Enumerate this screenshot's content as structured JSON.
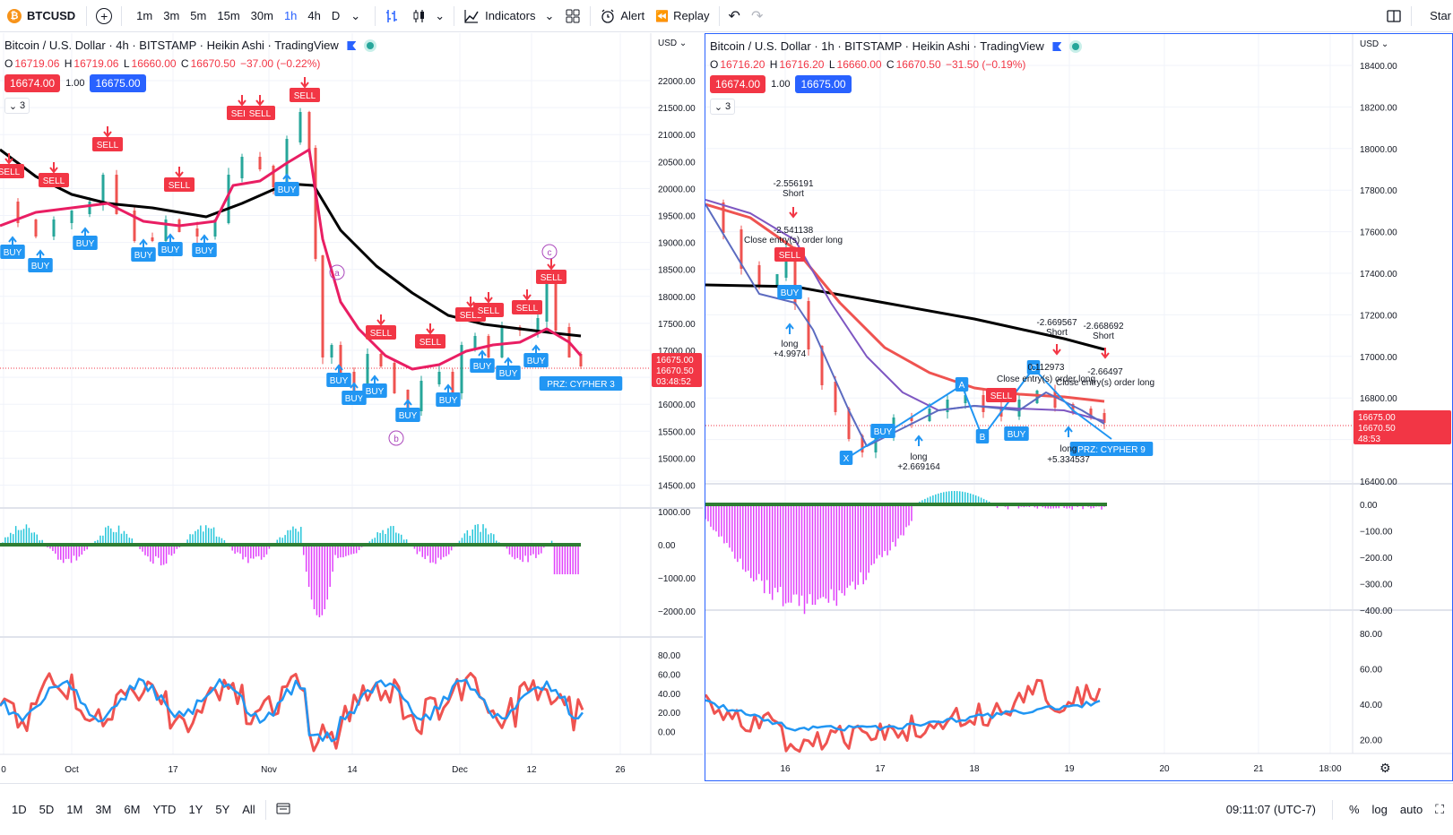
{
  "toolbar": {
    "symbol": "BTCUSD",
    "timeframes": [
      "1m",
      "3m",
      "5m",
      "15m",
      "30m",
      "1h",
      "4h",
      "D"
    ],
    "active_timeframe": "1h",
    "indicators_label": "Indicators",
    "alert_label": "Alert",
    "replay_label": "Replay",
    "start_label": "Star"
  },
  "colors": {
    "accent": "#2962ff",
    "sell": "#f23645",
    "buy": "#2196f3",
    "ma_black": "#000000",
    "ma_red": "#e91e63",
    "osc_pos": "#26c6da",
    "osc_neg": "#e040fb"
  },
  "left_chart": {
    "legend": "Bitcoin / U.S. Dollar · 4h · BITSTAMP · Heikin Ashi · TradingView",
    "ohlc": {
      "o": "16719.06",
      "h": "16719.06",
      "l": "16660.00",
      "c": "16670.50",
      "change": "−37.00 (−0.22%)"
    },
    "bid": "16674.00",
    "qty": "1.00",
    "ask": "16675.00",
    "collapse_count": "3",
    "currency": "USD",
    "price_ticks": [
      "22000.00",
      "21500.00",
      "21000.00",
      "20500.00",
      "20000.00",
      "19500.00",
      "19000.00",
      "18500.00",
      "18000.00",
      "17500.00",
      "17000.00",
      "16500.00",
      "16000.00",
      "15500.00",
      "15000.00",
      "14500.00"
    ],
    "price_labels": [
      "16675.00",
      "16670.50",
      "03:48:52"
    ],
    "osc_ticks": [
      "1000.00",
      "0.00",
      "−1000.00",
      "−2000.00"
    ],
    "rsi_ticks": [
      "80.00",
      "60.00",
      "40.00",
      "20.00",
      "0.00"
    ],
    "time_ticks": [
      "0",
      "Oct",
      "17",
      "Nov",
      "14",
      "Dec",
      "12",
      "26"
    ],
    "prz_label": "PRZ: CYPHER 3",
    "wave_labels": [
      "a",
      "b",
      "c"
    ],
    "sell_label": "SELL",
    "buy_label": "BUY"
  },
  "right_chart": {
    "legend": "Bitcoin / U.S. Dollar · 1h · BITSTAMP · Heikin Ashi · TradingView",
    "ohlc": {
      "o": "16716.20",
      "h": "16716.20",
      "l": "16660.00",
      "c": "16670.50",
      "change": "−31.50 (−0.19%)"
    },
    "bid": "16674.00",
    "qty": "1.00",
    "ask": "16675.00",
    "collapse_count": "3",
    "currency": "USD",
    "price_ticks": [
      "18400.00",
      "18200.00",
      "18000.00",
      "17800.00",
      "17600.00",
      "17400.00",
      "17200.00",
      "17000.00",
      "16800.00",
      "16600.00",
      "16400.00"
    ],
    "price_labels": [
      "16675.00",
      "16670.50",
      "48:53"
    ],
    "osc_ticks": [
      "0.00",
      "−100.00",
      "−200.00",
      "−300.00",
      "−400.00"
    ],
    "rsi_ticks": [
      "80.00",
      "60.00",
      "40.00",
      "20.00"
    ],
    "time_ticks": [
      "16",
      "17",
      "18",
      "19",
      "20",
      "21",
      "18:00"
    ],
    "prz_label": "PRZ: CYPHER 9",
    "xabc_labels": [
      "X",
      "A",
      "B",
      "C"
    ],
    "annotations": {
      "short1_val": "-2.556191",
      "short1": "Short",
      "close1_val": "-2.541138",
      "close1": "Close entry(s) order long",
      "long1": "long",
      "long1_val": "+4.9974",
      "long2": "long",
      "long2_val": "+2.669164",
      "short2_val": "-2.669567",
      "short2": "Short",
      "short3_val": "-2.668692",
      "short3": "Short",
      "close2_val": "0.112973",
      "close2": "Close entry(s) order long",
      "close3_val": "-2.66497",
      "close3": "Close entry(s) order long",
      "long3": "long",
      "long3_val": "+5.334537"
    },
    "sell_label": "SELL",
    "buy_label": "BUY"
  },
  "bottombar": {
    "ranges": [
      "1D",
      "5D",
      "1M",
      "3M",
      "6M",
      "YTD",
      "1Y",
      "5Y",
      "All"
    ],
    "clock": "09:11:07 (UTC-7)",
    "percent": "%",
    "log": "log",
    "auto": "auto"
  }
}
